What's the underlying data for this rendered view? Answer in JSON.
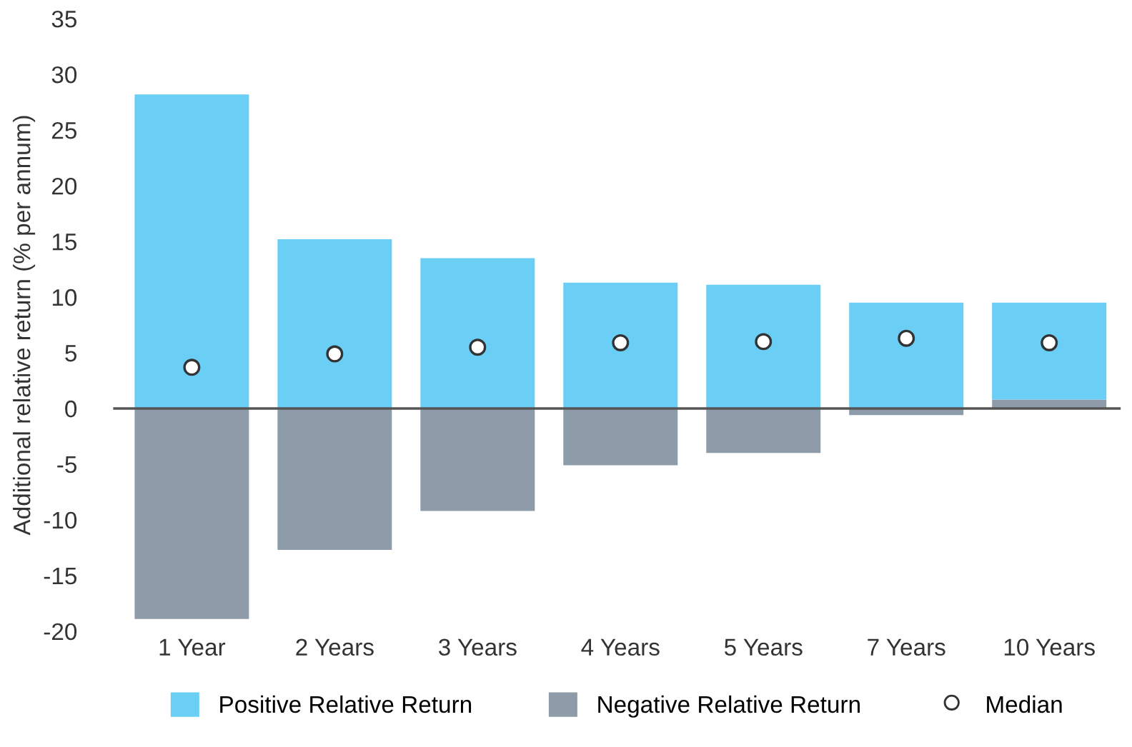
{
  "chart_data": {
    "type": "bar",
    "ylabel": "Additional relative return (% per annum)",
    "categories": [
      "1 Year",
      "2 Years",
      "3 Years",
      "4 Years",
      "5 Years",
      "7 Years",
      "10 Years"
    ],
    "series": [
      {
        "name": "Negative Relative Return",
        "color": "#8e9caa",
        "values": [
          -18.9,
          -12.7,
          -9.2,
          -5.1,
          -4.0,
          -0.6,
          0.8
        ]
      },
      {
        "name": "Positive Relative Return",
        "color": "#6acef5",
        "values": [
          28.2,
          15.2,
          13.5,
          11.3,
          11.1,
          9.5,
          8.7
        ]
      },
      {
        "name": "Median",
        "type": "scatter",
        "color": "#ffffff",
        "marker": "circle",
        "values": [
          3.7,
          4.9,
          5.5,
          5.9,
          6.0,
          6.3,
          5.9
        ]
      }
    ],
    "stacked": true,
    "ylim": [
      -20,
      35
    ],
    "yticks": [
      {
        "value": -20,
        "label": "-20"
      },
      {
        "value": -15,
        "label": "-15"
      },
      {
        "value": -10,
        "label": "-10"
      },
      {
        "value": -5,
        "label": "-5"
      },
      0,
      5,
      10,
      15,
      20,
      25,
      30,
      35
    ],
    "ref_lines": [
      {
        "axis": "y",
        "value": 0,
        "color": "#555555"
      }
    ],
    "grid": false,
    "legend": "bottom"
  }
}
